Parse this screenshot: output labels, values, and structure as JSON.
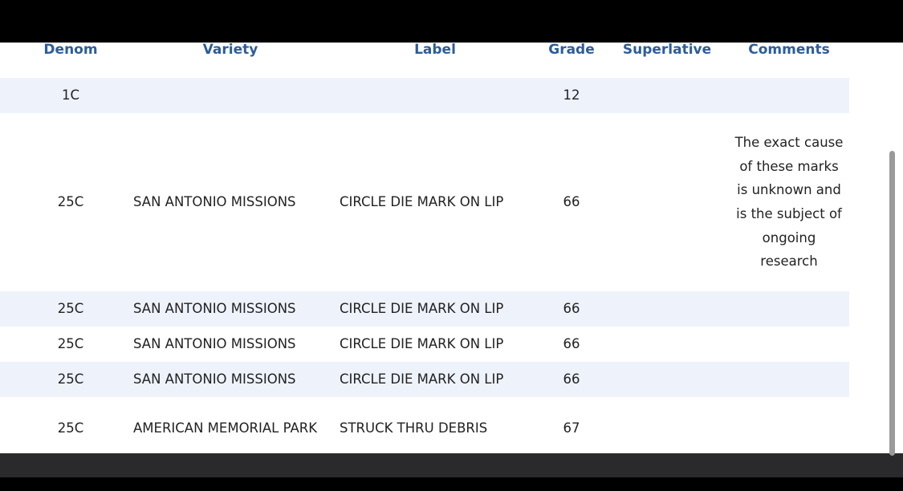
{
  "table": {
    "headers": [
      "Denom",
      "Variety",
      "Label",
      "Grade",
      "Superlative",
      "Comments"
    ],
    "rows": [
      [
        "1C",
        null,
        null,
        "12",
        null,
        null
      ],
      [
        "25C",
        "SAN ANTONIO MISSIONS",
        "CIRCLE DIE MARK ON LIP",
        "66",
        null,
        "The exact cause of these marks is unknown and is the subject of ongoing research"
      ],
      [
        "25C",
        "SAN ANTONIO MISSIONS",
        "CIRCLE DIE MARK ON LIP",
        "66",
        null,
        null
      ],
      [
        "25C",
        "SAN ANTONIO MISSIONS",
        "CIRCLE DIE MARK ON LIP",
        "66",
        null,
        null
      ],
      [
        "25C",
        "SAN ANTONIO MISSIONS",
        "CIRCLE DIE MARK ON LIP",
        "66",
        null,
        null
      ],
      [
        "25C",
        "AMERICAN MEMORIAL PARK",
        "STRUCK THRU DEBRIS",
        "67",
        null,
        null
      ]
    ]
  }
}
